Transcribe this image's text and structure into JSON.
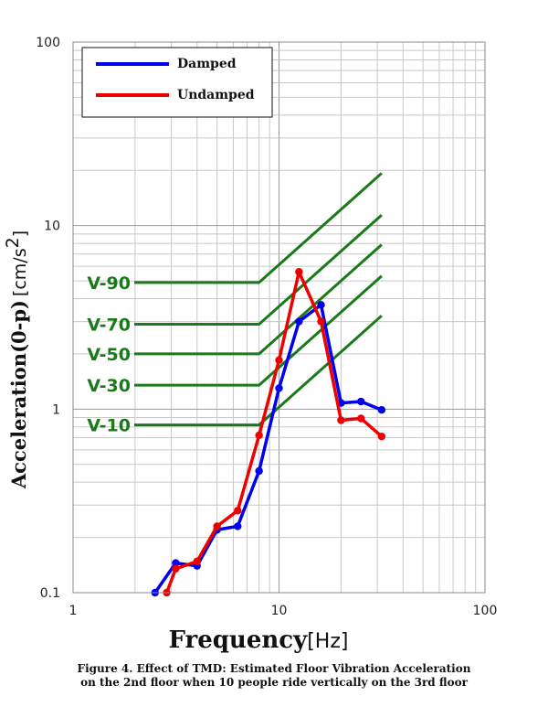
{
  "chart_data": {
    "type": "line",
    "x_scale": "log",
    "y_scale": "log",
    "xlim": [
      1,
      100
    ],
    "ylim": [
      0.1,
      100
    ],
    "x_tick_labels": [
      "1",
      "10",
      "100"
    ],
    "y_tick_labels": [
      "0.1",
      "1",
      "10",
      "100"
    ],
    "xlabel": "Frequency",
    "xlabel_unit": "[Hz]",
    "ylabel": "Acceleration(0-p)",
    "ylabel_unit": "[cm/s",
    "ylabel_sup": "2",
    "ylabel_close": "]",
    "grid": true,
    "legend_position": "top-left",
    "series": [
      {
        "name": "Damped",
        "color": "#0000ee",
        "points": [
          [
            2.5,
            0.1
          ],
          [
            3.15,
            0.145
          ],
          [
            4,
            0.14
          ],
          [
            5,
            0.22
          ],
          [
            6.3,
            0.23
          ],
          [
            8,
            0.46
          ],
          [
            10,
            1.3
          ],
          [
            12.5,
            3.0
          ],
          [
            16,
            3.7
          ],
          [
            20,
            1.08
          ],
          [
            25,
            1.1
          ],
          [
            31.5,
            0.99
          ]
        ]
      },
      {
        "name": "Undamped",
        "color": "#ee0000",
        "points": [
          [
            2.85,
            0.1
          ],
          [
            3.15,
            0.135
          ],
          [
            4,
            0.148
          ],
          [
            5,
            0.23
          ],
          [
            6.3,
            0.28
          ],
          [
            8,
            0.72
          ],
          [
            10,
            1.85
          ],
          [
            12.5,
            5.6
          ],
          [
            16,
            3.0
          ],
          [
            20,
            0.87
          ],
          [
            25,
            0.89
          ],
          [
            31.5,
            0.71
          ]
        ]
      }
    ],
    "criteria": [
      {
        "label": "V-90",
        "value": 4.9
      },
      {
        "label": "V-70",
        "value": 2.9
      },
      {
        "label": "V-50",
        "value": 2.0
      },
      {
        "label": "V-30",
        "value": 1.35
      },
      {
        "label": "V-10",
        "value": 0.82
      }
    ],
    "criteria_color": "#1a7a1a",
    "criteria_breakpoint_hz": 8,
    "criteria_end_hz": 31.5,
    "caption_line1": "Figure 4. Effect of TMD: Estimated Floor Vibration Acceleration",
    "caption_line2": "on the 2nd floor when 10 people ride vertically on the 3rd floor"
  }
}
